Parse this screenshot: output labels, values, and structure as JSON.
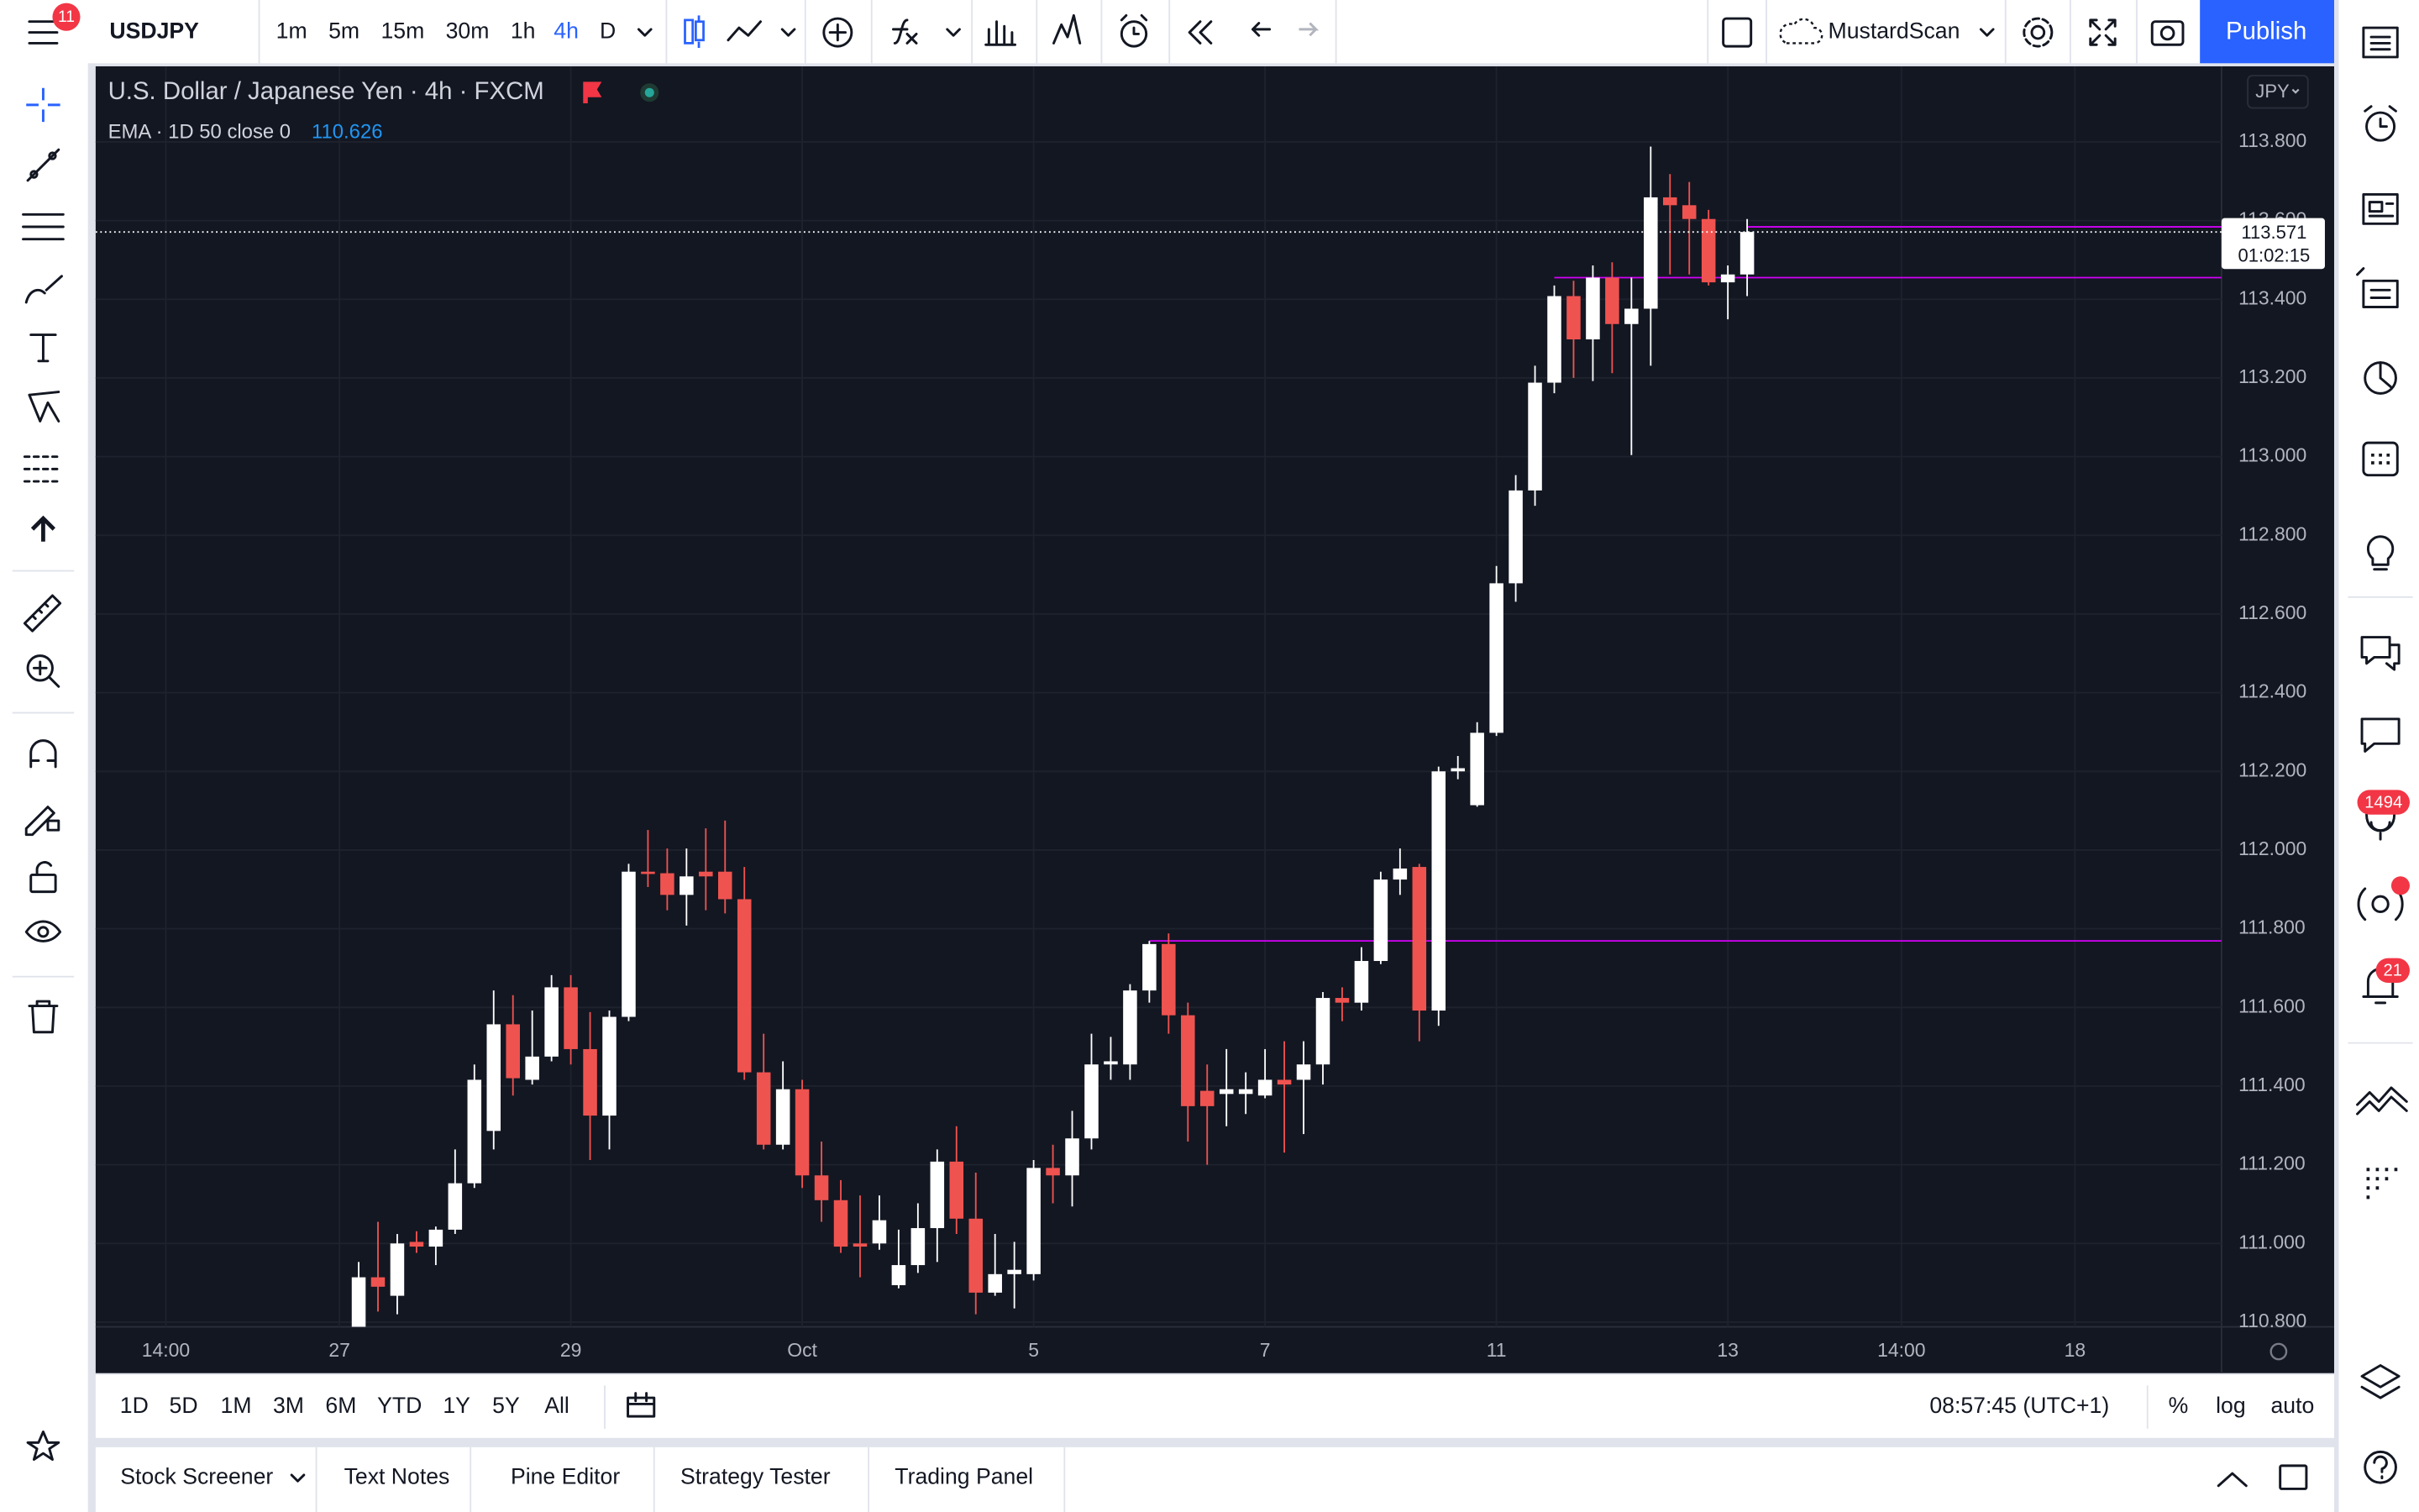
{
  "toolbar": {
    "symbol": "USDJPY",
    "menu_badge": 11,
    "intervals": [
      "1m",
      "5m",
      "15m",
      "30m",
      "1h",
      "4h",
      "D"
    ],
    "layout_name": "MustardScan",
    "publish": "Publish"
  },
  "chart_data": {
    "type": "candlestick",
    "title": "U.S. Dollar / Japanese Yen · 4h · FXCM",
    "indicator": "EMA · 1D 50 close 0",
    "indicator_value": "110.626",
    "currency": "JPY",
    "up_color": "#ffffff",
    "down_color": "#ef5350",
    "hline_color": "#d500f9",
    "grid": true,
    "xlim": [
      -12.64,
      97.6
    ],
    "xticks": [
      {
        "value": -9,
        "label": "14:00"
      },
      {
        "value": 0,
        "label": "27"
      },
      {
        "value": 12,
        "label": "29"
      },
      {
        "value": 24,
        "label": "Oct"
      },
      {
        "value": 36,
        "label": "5"
      },
      {
        "value": 48,
        "label": "7"
      },
      {
        "value": 60,
        "label": "11"
      },
      {
        "value": 72,
        "label": "13"
      },
      {
        "value": 81,
        "label": "14:00"
      },
      {
        "value": 90,
        "label": "18"
      }
    ],
    "ylim": [
      110.788,
      113.992
    ],
    "yticks": [
      {
        "value": 110.8,
        "label": "110.800"
      },
      {
        "value": 111,
        "label": "111.000"
      },
      {
        "value": 111.2,
        "label": "111.200"
      },
      {
        "value": 111.4,
        "label": "111.400"
      },
      {
        "value": 111.6,
        "label": "111.600"
      },
      {
        "value": 111.8,
        "label": "111.800"
      },
      {
        "value": 112,
        "label": "112.000"
      },
      {
        "value": 112.2,
        "label": "112.200"
      },
      {
        "value": 112.4,
        "label": "112.400"
      },
      {
        "value": 112.6,
        "label": "112.600"
      },
      {
        "value": 112.8,
        "label": "112.800"
      },
      {
        "value": 113,
        "label": "113.000"
      },
      {
        "value": 113.2,
        "label": "113.200"
      },
      {
        "value": 113.4,
        "label": "113.400"
      },
      {
        "value": 113.6,
        "label": "113.600"
      },
      {
        "value": 113.8,
        "label": "113.800"
      }
    ],
    "x": [
      1,
      2,
      3,
      4,
      5,
      6,
      7,
      8,
      9,
      10,
      11,
      12,
      13,
      14,
      15,
      16,
      17,
      18,
      19,
      20,
      21,
      22,
      23,
      24,
      25,
      26,
      27,
      28,
      29,
      30,
      31,
      32,
      33,
      34,
      35,
      36,
      37,
      38,
      39,
      40,
      41,
      42,
      43,
      44,
      45,
      46,
      47,
      48,
      49,
      50,
      51,
      52,
      53,
      54,
      55,
      56,
      57,
      58,
      59,
      60,
      61,
      62,
      63,
      64,
      65,
      66,
      67,
      68,
      69,
      70,
      71,
      72,
      73
    ],
    "open": [
      110.788,
      110.914,
      110.867,
      111.004,
      110.992,
      111.035,
      111.153,
      111.286,
      111.557,
      111.416,
      111.475,
      111.651,
      111.494,
      111.325,
      111.576,
      111.945,
      111.941,
      111.886,
      111.945,
      111.945,
      111.875,
      111.435,
      111.251,
      111.392,
      111.173,
      111.11,
      111.0,
      111.0,
      110.894,
      110.945,
      111.039,
      111.208,
      111.063,
      110.875,
      110.922,
      110.922,
      111.192,
      111.173,
      111.267,
      111.455,
      111.455,
      111.643,
      111.761,
      111.58,
      111.388,
      111.38,
      111.38,
      111.376,
      111.416,
      111.416,
      111.455,
      111.624,
      111.612,
      111.718,
      111.925,
      111.957,
      111.592,
      112.2,
      112.114,
      112.298,
      112.678,
      112.914,
      113.188,
      113.408,
      113.298,
      113.455,
      113.337,
      113.376,
      113.659,
      113.639,
      113.604,
      113.443,
      113.463
    ],
    "high": [
      110.953,
      111.055,
      111.024,
      111.031,
      111.043,
      111.239,
      111.455,
      111.643,
      111.631,
      111.592,
      111.682,
      111.682,
      111.588,
      111.592,
      111.965,
      112.051,
      112.004,
      112.004,
      112.055,
      112.075,
      111.957,
      111.533,
      111.463,
      111.416,
      111.259,
      111.161,
      111.122,
      111.122,
      111.035,
      111.102,
      111.239,
      111.298,
      111.18,
      111.024,
      111.004,
      111.212,
      111.251,
      111.337,
      111.533,
      111.525,
      111.659,
      111.769,
      111.788,
      111.612,
      111.455,
      111.494,
      111.435,
      111.494,
      111.514,
      111.514,
      111.639,
      111.651,
      111.753,
      111.945,
      112.004,
      111.965,
      112.212,
      112.239,
      112.325,
      112.722,
      112.953,
      113.231,
      113.435,
      113.447,
      113.486,
      113.494,
      113.455,
      113.788,
      113.718,
      113.698,
      113.627,
      113.486,
      113.604
    ],
    "low": [
      110.788,
      110.827,
      110.82,
      110.976,
      110.945,
      111.024,
      111.141,
      111.239,
      111.376,
      111.404,
      111.463,
      111.455,
      111.212,
      111.239,
      111.565,
      111.906,
      111.847,
      111.808,
      111.847,
      111.839,
      111.416,
      111.239,
      111.239,
      111.141,
      111.055,
      110.976,
      110.914,
      110.984,
      110.886,
      110.925,
      110.953,
      111.024,
      110.82,
      110.867,
      110.835,
      110.906,
      111.102,
      111.094,
      111.239,
      111.416,
      111.416,
      111.612,
      111.533,
      111.259,
      111.2,
      111.298,
      111.329,
      111.369,
      111.231,
      111.278,
      111.404,
      111.565,
      111.592,
      111.71,
      111.886,
      111.514,
      111.553,
      112.18,
      112.11,
      112.29,
      112.631,
      112.875,
      113.161,
      113.2,
      113.192,
      113.212,
      113.004,
      113.231,
      113.463,
      113.463,
      113.435,
      113.349,
      113.408
    ],
    "close": [
      110.914,
      110.89,
      111.0,
      110.992,
      111.035,
      111.153,
      111.416,
      111.557,
      111.42,
      111.475,
      111.651,
      111.494,
      111.325,
      111.576,
      111.945,
      111.941,
      111.886,
      111.933,
      111.933,
      111.875,
      111.435,
      111.251,
      111.392,
      111.173,
      111.11,
      110.992,
      110.992,
      111.059,
      110.945,
      111.039,
      111.208,
      111.063,
      110.875,
      110.922,
      110.933,
      111.192,
      111.173,
      111.267,
      111.455,
      111.463,
      111.643,
      111.761,
      111.58,
      111.349,
      111.349,
      111.392,
      111.392,
      111.416,
      111.404,
      111.455,
      111.624,
      111.612,
      111.718,
      111.925,
      111.953,
      111.592,
      112.2,
      112.208,
      112.298,
      112.678,
      112.914,
      113.188,
      113.408,
      113.298,
      113.455,
      113.337,
      113.376,
      113.659,
      113.639,
      113.604,
      113.443,
      113.463,
      113.571
    ],
    "hlines": [
      {
        "value": 113.455,
        "start": 63
      },
      {
        "value": 111.769,
        "start": 42
      },
      {
        "value": 113.584,
        "start": 73
      }
    ],
    "last_price": 113.571,
    "countdown": "01:02:15"
  },
  "bottom_bar": {
    "ranges": [
      "1D",
      "5D",
      "1M",
      "3M",
      "6M",
      "YTD",
      "1Y",
      "5Y",
      "All"
    ],
    "clock": "08:57:45 (UTC+1)",
    "options": [
      "%",
      "log",
      "auto"
    ]
  },
  "tabs": [
    "Stock Screener",
    "Text Notes",
    "Pine Editor",
    "Strategy Tester",
    "Trading Panel"
  ],
  "sidebar_badges": [
    1494,
    21
  ]
}
